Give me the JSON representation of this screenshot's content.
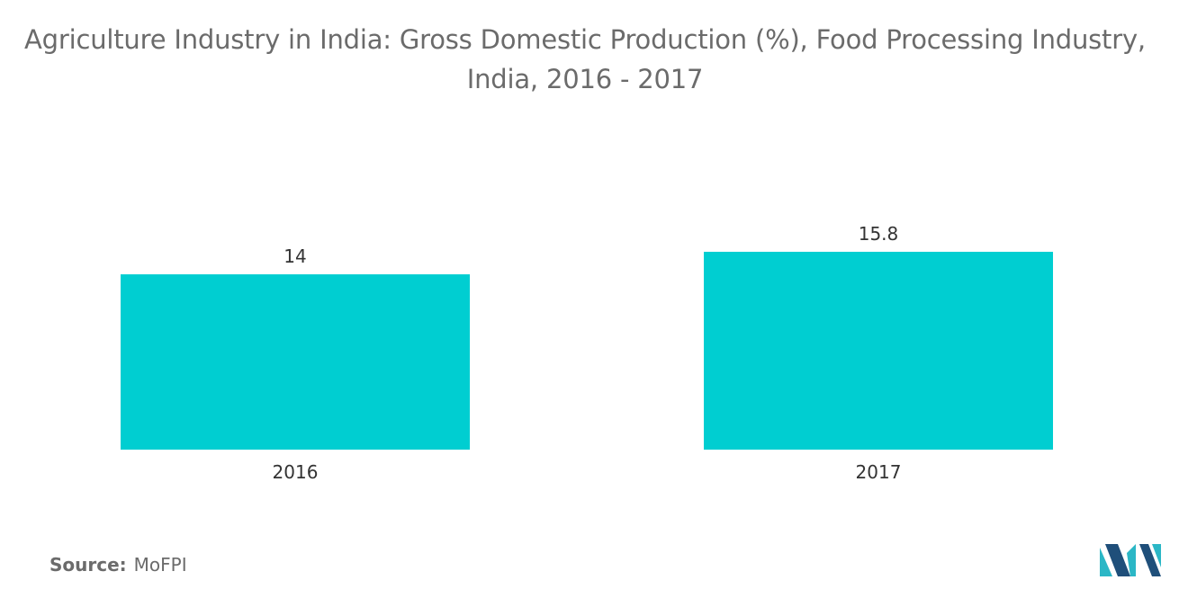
{
  "chart_data": {
    "type": "bar",
    "title": "Agriculture Industry in India: Gross Domestic Production (%), Food Processing Industry, India, 2016 - 2017",
    "categories": [
      "2016",
      "2017"
    ],
    "values": [
      14,
      15.8
    ],
    "data_labels": [
      "14",
      "15.8"
    ],
    "xlabel": "",
    "ylabel": "",
    "ylim": [
      0,
      15.8
    ],
    "grid": false,
    "legend": "none",
    "bar_color": "#00CED1"
  },
  "source": {
    "label": "Source:",
    "value": "MoFPI"
  },
  "colors": {
    "title_text": "#6b6b6b",
    "axis_text": "#333333",
    "logo_dark": "#1f4f7a",
    "logo_light": "#2bb7c6"
  }
}
